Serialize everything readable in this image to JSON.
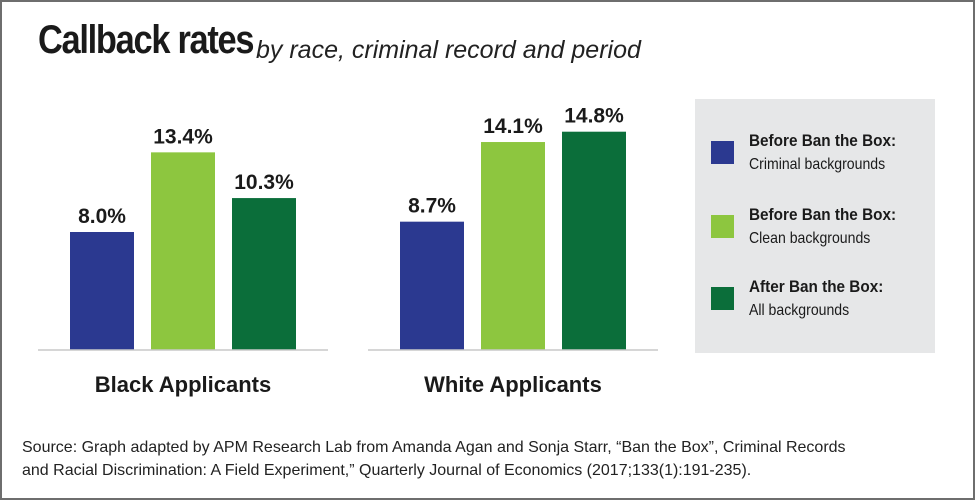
{
  "title": "Callback rates",
  "subtitle": "by race, criminal record and period",
  "chart_data": {
    "type": "bar",
    "categories": [
      "Black Applicants",
      "White Applicants"
    ],
    "series": [
      {
        "name": "Before Ban the Box: Criminal backgrounds",
        "color": "#2b3990",
        "values": [
          8.0,
          8.7
        ],
        "labels": [
          "8.0%",
          "8.7%"
        ]
      },
      {
        "name": "Before Ban the Box: Clean backgrounds",
        "color": "#8dc63f",
        "values": [
          13.4,
          14.1
        ],
        "labels": [
          "13.4%",
          "14.1%"
        ]
      },
      {
        "name": "After Ban the Box: All backgrounds",
        "color": "#0b6e3a",
        "values": [
          10.3,
          14.8
        ],
        "labels": [
          "10.3%",
          "14.8%"
        ]
      }
    ],
    "ylim": [
      0,
      16
    ],
    "grid": false,
    "legend_position": "right"
  },
  "legend": [
    {
      "title": "Before Ban the Box:",
      "sub": "Criminal backgrounds",
      "color": "#2b3990"
    },
    {
      "title": "Before Ban the Box:",
      "sub": "Clean backgrounds",
      "color": "#8dc63f"
    },
    {
      "title": "After Ban the Box:",
      "sub": "All backgrounds",
      "color": "#0b6e3a"
    }
  ],
  "source_line1": "Source: Graph adapted by APM Research Lab from Amanda Agan and Sonja Starr, “Ban the Box”, Criminal Records",
  "source_line2": "and Racial Discrimination: A Field Experiment,” Quarterly Journal of Economics (2017;133(1):191-235)."
}
